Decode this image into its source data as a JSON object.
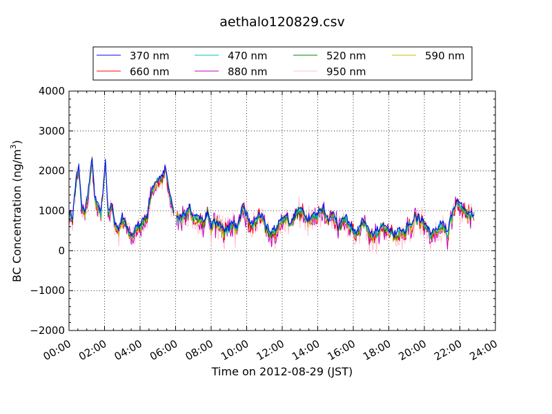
{
  "chart_data": {
    "type": "line",
    "title": "aethalo120829.csv",
    "xlabel": "Time on 2012-08-29 (JST)",
    "ylabel": "BC Concentration (ng/m",
    "ylabel_superscript": "3",
    "ylabel_close": ")",
    "xlim_hours": [
      0,
      24
    ],
    "ylim": [
      -2000,
      4000
    ],
    "yticks": [
      -2000,
      -1000,
      0,
      1000,
      2000,
      3000,
      4000
    ],
    "ytick_labels": [
      "−2000",
      "−1000",
      "0",
      "1000",
      "2000",
      "3000",
      "4000"
    ],
    "xticks_hours": [
      0,
      2,
      4,
      6,
      8,
      10,
      12,
      14,
      16,
      18,
      20,
      22,
      24
    ],
    "xtick_labels": [
      "00:00",
      "02:00",
      "04:00",
      "06:00",
      "08:00",
      "10:00",
      "12:00",
      "14:00",
      "16:00",
      "18:00",
      "20:00",
      "22:00",
      "24:00"
    ],
    "grid": true,
    "legend_position": "top",
    "series": [
      {
        "name": "370 nm",
        "color": "#0000ff",
        "jitter": 70,
        "shift": 80
      },
      {
        "name": "470 nm",
        "color": "#00bfbf",
        "jitter": 80,
        "shift": 40
      },
      {
        "name": "520 nm",
        "color": "#008000",
        "jitter": 90,
        "shift": 20
      },
      {
        "name": "590 nm",
        "color": "#bfbf00",
        "jitter": 110,
        "shift": 0
      },
      {
        "name": "660 nm",
        "color": "#ff0000",
        "jitter": 140,
        "shift": 0
      },
      {
        "name": "880 nm",
        "color": "#bf00bf",
        "jitter": 190,
        "shift": -20
      },
      {
        "name": "950 nm",
        "color": "#ffc0cb",
        "jitter": 260,
        "shift": -30
      }
    ],
    "reference_profile": {
      "x_hours": [
        0.0,
        0.2,
        0.4,
        0.55,
        0.7,
        0.9,
        1.1,
        1.3,
        1.45,
        1.6,
        1.8,
        1.95,
        2.05,
        2.2,
        2.4,
        2.6,
        2.8,
        3.0,
        3.2,
        3.4,
        3.6,
        3.8,
        4.0,
        4.2,
        4.4,
        4.6,
        4.8,
        5.0,
        5.2,
        5.4,
        5.5,
        5.7,
        5.9,
        6.0,
        6.2,
        6.4,
        6.6,
        6.8,
        7.0,
        7.2,
        7.4,
        7.6,
        7.8,
        8.0,
        8.3,
        8.6,
        8.9,
        9.2,
        9.5,
        9.8,
        10.1,
        10.4,
        10.7,
        11.0,
        11.3,
        11.6,
        11.9,
        12.2,
        12.5,
        12.8,
        13.1,
        13.4,
        13.7,
        14.0,
        14.3,
        14.6,
        14.9,
        15.2,
        15.5,
        15.8,
        16.0,
        16.2,
        16.5,
        16.8,
        17.1,
        17.4,
        17.7,
        18.0,
        18.3,
        18.6,
        18.9,
        19.2,
        19.5,
        19.8,
        20.1,
        20.4,
        20.7,
        21.0,
        21.3,
        21.6,
        21.9,
        22.2,
        22.5,
        22.8
      ],
      "values": [
        900,
        800,
        1700,
        2100,
        1100,
        950,
        1500,
        2250,
        1300,
        1100,
        900,
        1600,
        2200,
        900,
        1100,
        600,
        500,
        800,
        600,
        400,
        300,
        600,
        550,
        700,
        800,
        1400,
        1600,
        1700,
        1800,
        2000,
        1800,
        1300,
        900,
        850,
        700,
        800,
        900,
        1050,
        750,
        800,
        750,
        650,
        900,
        600,
        700,
        550,
        400,
        650,
        500,
        1100,
        700,
        600,
        900,
        650,
        400,
        500,
        700,
        850,
        600,
        900,
        1000,
        700,
        800,
        900,
        1000,
        700,
        900,
        500,
        800,
        600,
        450,
        400,
        700,
        500,
        350,
        450,
        600,
        500,
        300,
        500,
        450,
        600,
        800,
        700,
        600,
        400,
        500,
        650,
        400,
        900,
        1200,
        1000,
        900,
        850
      ]
    },
    "legend_columns": 4
  }
}
